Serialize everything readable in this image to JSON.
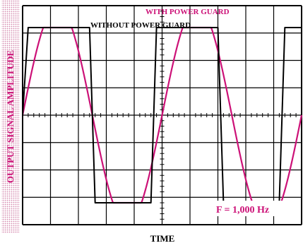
{
  "chart_data": {
    "type": "line",
    "ylabel": "OUTPUT SIGNAL AMPLITUDE",
    "xlabel": "TIME",
    "annotation": "F = 1,000 Hz",
    "grid": true,
    "xlim": [
      0,
      10
    ],
    "ylim": [
      -4,
      4
    ],
    "series": [
      {
        "name": "WITH POWER GUARD",
        "color": "#cc1177",
        "x": [
          0,
          0.5,
          1.0,
          1.5,
          2.0,
          2.5,
          3.0,
          3.5,
          4.0,
          4.5,
          5.0,
          5.5,
          6.0,
          6.5,
          7.0,
          7.5,
          8.0,
          8.5,
          9.0,
          9.5,
          10.0
        ],
        "y": [
          0,
          2.8,
          3.2,
          3.2,
          2.2,
          0,
          -2.2,
          -3.2,
          -3.2,
          -2.2,
          0,
          2.2,
          3.2,
          3.2,
          2.2,
          0,
          -2.2,
          -3.2,
          -3.2,
          -2.2,
          0
        ]
      },
      {
        "name": "WITHOUT POWER GUARD",
        "color": "#000000",
        "x": [
          0,
          0.2,
          2.4,
          2.6,
          4.6,
          4.8,
          7.0,
          7.2,
          9.2,
          9.4,
          10.0
        ],
        "y": [
          0,
          3.2,
          3.2,
          -3.2,
          -3.2,
          3.2,
          3.2,
          -3.2,
          -3.2,
          3.2,
          3.2
        ]
      }
    ]
  }
}
